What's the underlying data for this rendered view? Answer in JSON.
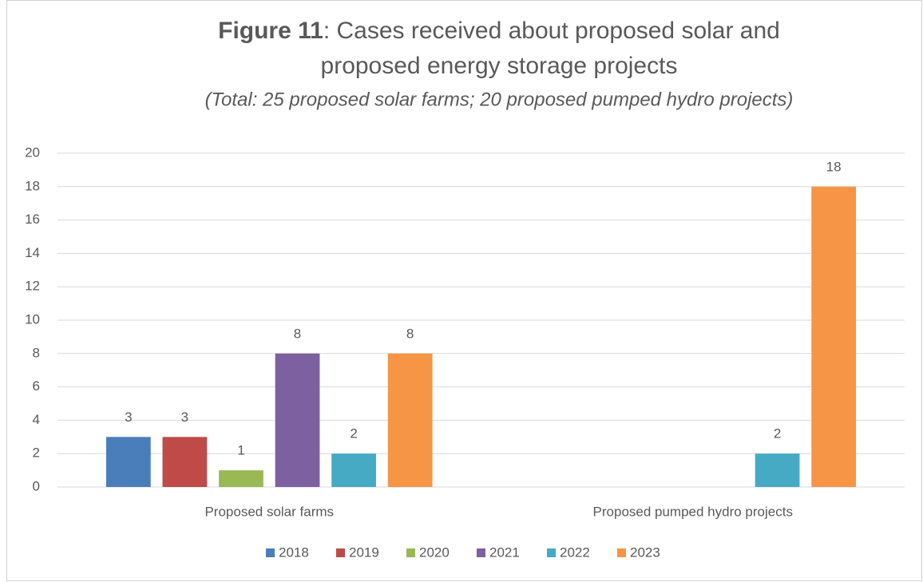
{
  "chart_data": {
    "type": "bar",
    "figure_label": "Figure 11",
    "title_lines": [
      ": Cases received about proposed solar and",
      "proposed energy storage projects"
    ],
    "subtitle": "(Total: 25 proposed solar farms; 20 proposed pumped hydro projects)",
    "categories": [
      "Proposed solar farms",
      "Proposed pumped hydro projects"
    ],
    "series": [
      {
        "name": "2018",
        "color": "#4a7ebb",
        "values": [
          3,
          null
        ]
      },
      {
        "name": "2019",
        "color": "#be4b48",
        "values": [
          3,
          null
        ]
      },
      {
        "name": "2020",
        "color": "#98b954",
        "values": [
          1,
          null
        ]
      },
      {
        "name": "2021",
        "color": "#7d60a0",
        "values": [
          8,
          null
        ]
      },
      {
        "name": "2022",
        "color": "#46aac5",
        "values": [
          2,
          2
        ]
      },
      {
        "name": "2023",
        "color": "#f69546",
        "values": [
          8,
          18
        ]
      }
    ],
    "ylim": [
      0,
      20
    ],
    "yticks": [
      0,
      2,
      4,
      6,
      8,
      10,
      12,
      14,
      16,
      18,
      20
    ],
    "grid": true,
    "data_labels": true,
    "legend": "bottom"
  }
}
